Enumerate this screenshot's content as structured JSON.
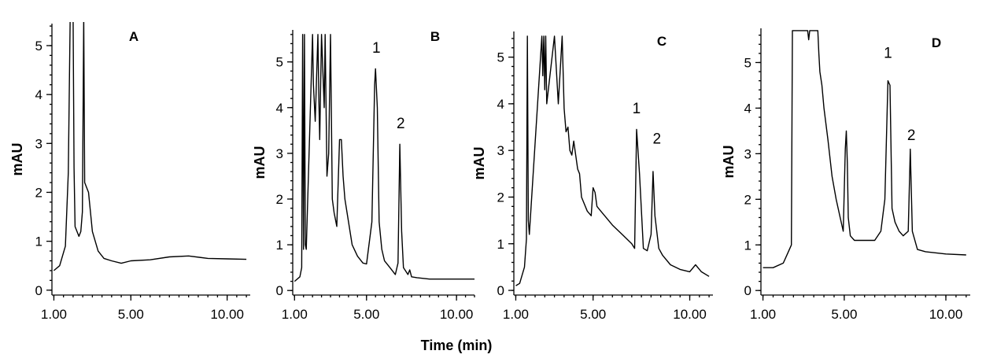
{
  "figure": {
    "xlabel": "Time (min)"
  },
  "chart_data": [
    {
      "type": "line",
      "panel_label": "A",
      "ylabel": "mAU",
      "xlim": [
        0.9,
        11.2
      ],
      "ylim": [
        -0.1,
        5.45
      ],
      "x_tick_labels": [
        "1.00",
        "5.00",
        "10.00"
      ],
      "x_ticks": [
        1,
        5,
        10
      ],
      "y_ticks": [
        0,
        1,
        2,
        3,
        4,
        5
      ],
      "peak_labels": [],
      "series": [
        {
          "x": [
            1.0,
            1.3,
            1.6,
            1.75,
            1.85,
            2.0,
            2.05,
            2.1,
            2.3,
            2.4,
            2.48,
            2.55,
            2.6,
            2.8,
            3.0,
            3.3,
            3.6,
            4.0,
            4.5,
            5.0,
            6.0,
            7.0,
            8.0,
            9.0,
            10.0,
            11.0
          ],
          "y": [
            0.4,
            0.5,
            0.9,
            2.4,
            5.6,
            5.6,
            2.5,
            1.3,
            1.1,
            1.2,
            1.6,
            5.6,
            2.2,
            2.0,
            1.2,
            0.8,
            0.65,
            0.6,
            0.55,
            0.6,
            0.62,
            0.68,
            0.7,
            0.65,
            0.64,
            0.63
          ]
        }
      ]
    },
    {
      "type": "line",
      "panel_label": "B",
      "ylabel": "mAU",
      "xlim": [
        0.9,
        11.0
      ],
      "ylim": [
        -0.1,
        5.7
      ],
      "x_tick_labels": [
        "1.00",
        "5.00",
        "10.00"
      ],
      "x_ticks": [
        1,
        5,
        10
      ],
      "y_ticks": [
        0,
        1,
        2,
        3,
        4,
        5
      ],
      "peak_labels": [
        {
          "text": "1",
          "x": 5.55,
          "y": 5.2
        },
        {
          "text": "2",
          "x": 6.9,
          "y": 3.55
        }
      ],
      "series": [
        {
          "x": [
            1.0,
            1.3,
            1.4,
            1.45,
            1.5,
            1.55,
            1.6,
            1.65,
            2.0,
            2.05,
            2.15,
            2.3,
            2.35,
            2.4,
            2.5,
            2.65,
            2.7,
            2.8,
            2.9,
            3.0,
            3.1,
            3.2,
            3.35,
            3.5,
            3.6,
            3.7,
            3.8,
            4.0,
            4.2,
            4.5,
            4.8,
            5.0,
            5.3,
            5.45,
            5.5,
            5.6,
            5.7,
            5.85,
            6.0,
            6.3,
            6.6,
            6.75,
            6.85,
            6.95,
            7.05,
            7.3,
            7.4,
            7.5,
            7.8,
            8.5,
            9.5,
            11.0
          ],
          "y": [
            0.2,
            0.3,
            0.5,
            5.6,
            0.9,
            5.6,
            1.0,
            0.9,
            5.6,
            4.5,
            3.7,
            5.6,
            4.2,
            3.3,
            5.6,
            4.0,
            5.6,
            2.5,
            3.0,
            5.6,
            2.0,
            1.7,
            1.4,
            3.3,
            3.3,
            2.5,
            2.0,
            1.5,
            1.0,
            0.75,
            0.6,
            0.58,
            1.5,
            4.5,
            4.85,
            4.0,
            1.5,
            0.9,
            0.65,
            0.5,
            0.35,
            0.6,
            3.2,
            1.3,
            0.5,
            0.35,
            0.45,
            0.3,
            0.28,
            0.25,
            0.25,
            0.25
          ]
        }
      ]
    },
    {
      "type": "line",
      "panel_label": "C",
      "ylabel": "mAU",
      "xlim": [
        0.9,
        11.2
      ],
      "ylim": [
        -0.1,
        5.55
      ],
      "x_tick_labels": [
        "1.00",
        "5.00",
        "10.00"
      ],
      "x_ticks": [
        1,
        5,
        10
      ],
      "y_ticks": [
        0,
        1,
        2,
        3,
        4,
        5
      ],
      "peak_labels": [
        {
          "text": "1",
          "x": 7.25,
          "y": 3.8
        },
        {
          "text": "2",
          "x": 8.3,
          "y": 3.15
        }
      ],
      "series": [
        {
          "x": [
            1.0,
            1.2,
            1.45,
            1.55,
            1.6,
            1.65,
            1.7,
            2.35,
            2.4,
            2.45,
            2.5,
            2.55,
            2.6,
            3.0,
            3.2,
            3.4,
            3.5,
            3.6,
            3.7,
            3.8,
            3.9,
            4.0,
            4.2,
            4.3,
            4.4,
            4.5,
            4.7,
            4.9,
            5.0,
            5.1,
            5.2,
            5.4,
            5.6,
            6.0,
            6.5,
            7.0,
            7.15,
            7.25,
            7.4,
            7.6,
            7.8,
            8.0,
            8.1,
            8.2,
            8.4,
            8.6,
            9.0,
            9.5,
            10.0,
            10.3,
            10.6,
            11.0
          ],
          "y": [
            0.1,
            0.15,
            0.5,
            1.1,
            5.45,
            1.5,
            1.2,
            5.45,
            4.6,
            5.45,
            4.3,
            5.45,
            4.0,
            5.45,
            4.0,
            5.45,
            3.9,
            3.4,
            3.5,
            3.0,
            2.9,
            3.2,
            2.6,
            2.5,
            2.0,
            1.9,
            1.7,
            1.6,
            2.2,
            2.1,
            1.8,
            1.7,
            1.6,
            1.4,
            1.2,
            1.0,
            0.9,
            3.45,
            2.5,
            0.9,
            0.85,
            1.2,
            2.55,
            1.6,
            0.9,
            0.75,
            0.55,
            0.45,
            0.4,
            0.55,
            0.4,
            0.3
          ]
        }
      ]
    },
    {
      "type": "line",
      "panel_label": "D",
      "ylabel": "mAU",
      "xlim": [
        0.9,
        11.2
      ],
      "ylim": [
        -0.1,
        5.75
      ],
      "x_tick_labels": [
        "1.00",
        "5.00",
        "10.00"
      ],
      "x_ticks": [
        1,
        5,
        10
      ],
      "y_ticks": [
        0,
        1,
        2,
        3,
        4,
        5
      ],
      "peak_labels": [
        {
          "text": "1",
          "x": 7.15,
          "y": 5.1
        },
        {
          "text": "2",
          "x": 8.3,
          "y": 3.3
        }
      ],
      "series": [
        {
          "x": [
            1.0,
            1.5,
            2.0,
            2.2,
            2.4,
            2.45,
            2.5,
            2.55,
            2.6,
            3.2,
            3.25,
            3.3,
            3.35,
            3.7,
            3.75,
            3.8,
            3.9,
            4.0,
            4.2,
            4.4,
            4.6,
            4.8,
            4.95,
            5.05,
            5.1,
            5.15,
            5.2,
            5.3,
            5.5,
            6.0,
            6.5,
            6.8,
            7.0,
            7.15,
            7.25,
            7.35,
            7.5,
            7.7,
            7.9,
            8.15,
            8.25,
            8.35,
            8.6,
            9.0,
            10.0,
            11.0
          ],
          "y": [
            0.5,
            0.5,
            0.6,
            0.8,
            1.0,
            5.7,
            5.7,
            5.7,
            5.7,
            5.7,
            5.5,
            5.7,
            5.7,
            5.7,
            5.2,
            4.8,
            4.5,
            4.0,
            3.3,
            2.5,
            2.0,
            1.6,
            1.3,
            3.1,
            3.5,
            2.8,
            1.6,
            1.2,
            1.1,
            1.1,
            1.1,
            1.3,
            2.0,
            4.6,
            4.5,
            1.8,
            1.5,
            1.3,
            1.2,
            1.3,
            3.1,
            1.3,
            0.9,
            0.85,
            0.8,
            0.78
          ]
        }
      ]
    }
  ]
}
